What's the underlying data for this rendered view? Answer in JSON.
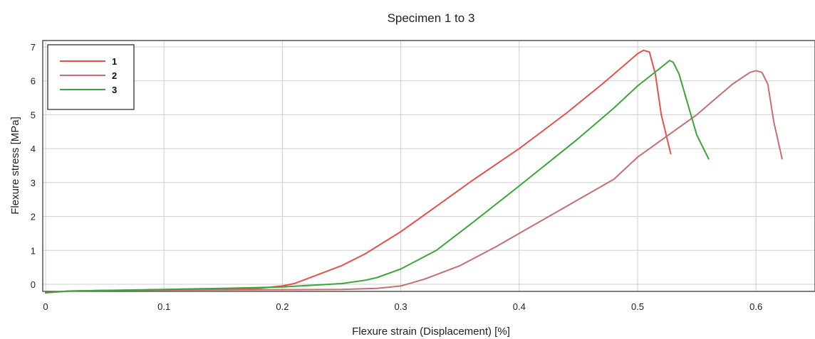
{
  "chart_data": {
    "type": "line",
    "title": "Specimen 1 to 3",
    "xlabel": "Flexure strain (Displacement) [%]",
    "ylabel": "Flexure stress [MPa]",
    "xlim": [
      0,
      0.65
    ],
    "ylim": [
      -0.25,
      7.2
    ],
    "xticks": [
      0,
      0.1,
      0.2,
      0.3,
      0.4,
      0.5,
      0.6
    ],
    "xtick_labels": [
      "0",
      "0.1",
      "0.2",
      "0.3",
      "0.4",
      "0.5",
      "0.6"
    ],
    "yticks": [
      0,
      1,
      2,
      3,
      4,
      5,
      6,
      7
    ],
    "ytick_labels": [
      "0",
      "1",
      "2",
      "3",
      "4",
      "5",
      "6",
      "7"
    ],
    "grid": true,
    "legend_position": "top-left",
    "series": [
      {
        "name": "1",
        "color": "#e8504a",
        "x": [
          0.0,
          0.02,
          0.05,
          0.1,
          0.15,
          0.18,
          0.2,
          0.21,
          0.22,
          0.25,
          0.27,
          0.3,
          0.33,
          0.36,
          0.4,
          0.44,
          0.47,
          0.49,
          0.5,
          0.505,
          0.51,
          0.515,
          0.52,
          0.528
        ],
        "y": [
          -0.25,
          -0.2,
          -0.18,
          -0.17,
          -0.15,
          -0.12,
          -0.05,
          0.02,
          0.15,
          0.55,
          0.9,
          1.55,
          2.3,
          3.05,
          4.0,
          5.05,
          5.9,
          6.5,
          6.8,
          6.9,
          6.85,
          6.2,
          5.0,
          3.85
        ]
      },
      {
        "name": "2",
        "color": "#c86e6e",
        "x": [
          0.0,
          0.02,
          0.05,
          0.1,
          0.2,
          0.25,
          0.28,
          0.3,
          0.32,
          0.35,
          0.38,
          0.4,
          0.45,
          0.48,
          0.5,
          0.55,
          0.58,
          0.595,
          0.6,
          0.605,
          0.61,
          0.615,
          0.622
        ],
        "y": [
          -0.25,
          -0.2,
          -0.18,
          -0.17,
          -0.16,
          -0.15,
          -0.12,
          -0.05,
          0.15,
          0.55,
          1.1,
          1.5,
          2.5,
          3.1,
          3.75,
          5.0,
          5.9,
          6.25,
          6.3,
          6.25,
          5.9,
          4.8,
          3.7
        ]
      },
      {
        "name": "3",
        "color": "#3aa63a",
        "x": [
          0.0,
          0.02,
          0.05,
          0.1,
          0.15,
          0.2,
          0.25,
          0.27,
          0.28,
          0.3,
          0.33,
          0.36,
          0.4,
          0.45,
          0.48,
          0.5,
          0.52,
          0.527,
          0.53,
          0.535,
          0.54,
          0.55,
          0.56
        ],
        "y": [
          -0.25,
          -0.2,
          -0.18,
          -0.15,
          -0.12,
          -0.08,
          0.02,
          0.12,
          0.2,
          0.45,
          1.0,
          1.8,
          2.9,
          4.3,
          5.2,
          5.85,
          6.4,
          6.6,
          6.55,
          6.2,
          5.6,
          4.4,
          3.7
        ]
      }
    ]
  }
}
